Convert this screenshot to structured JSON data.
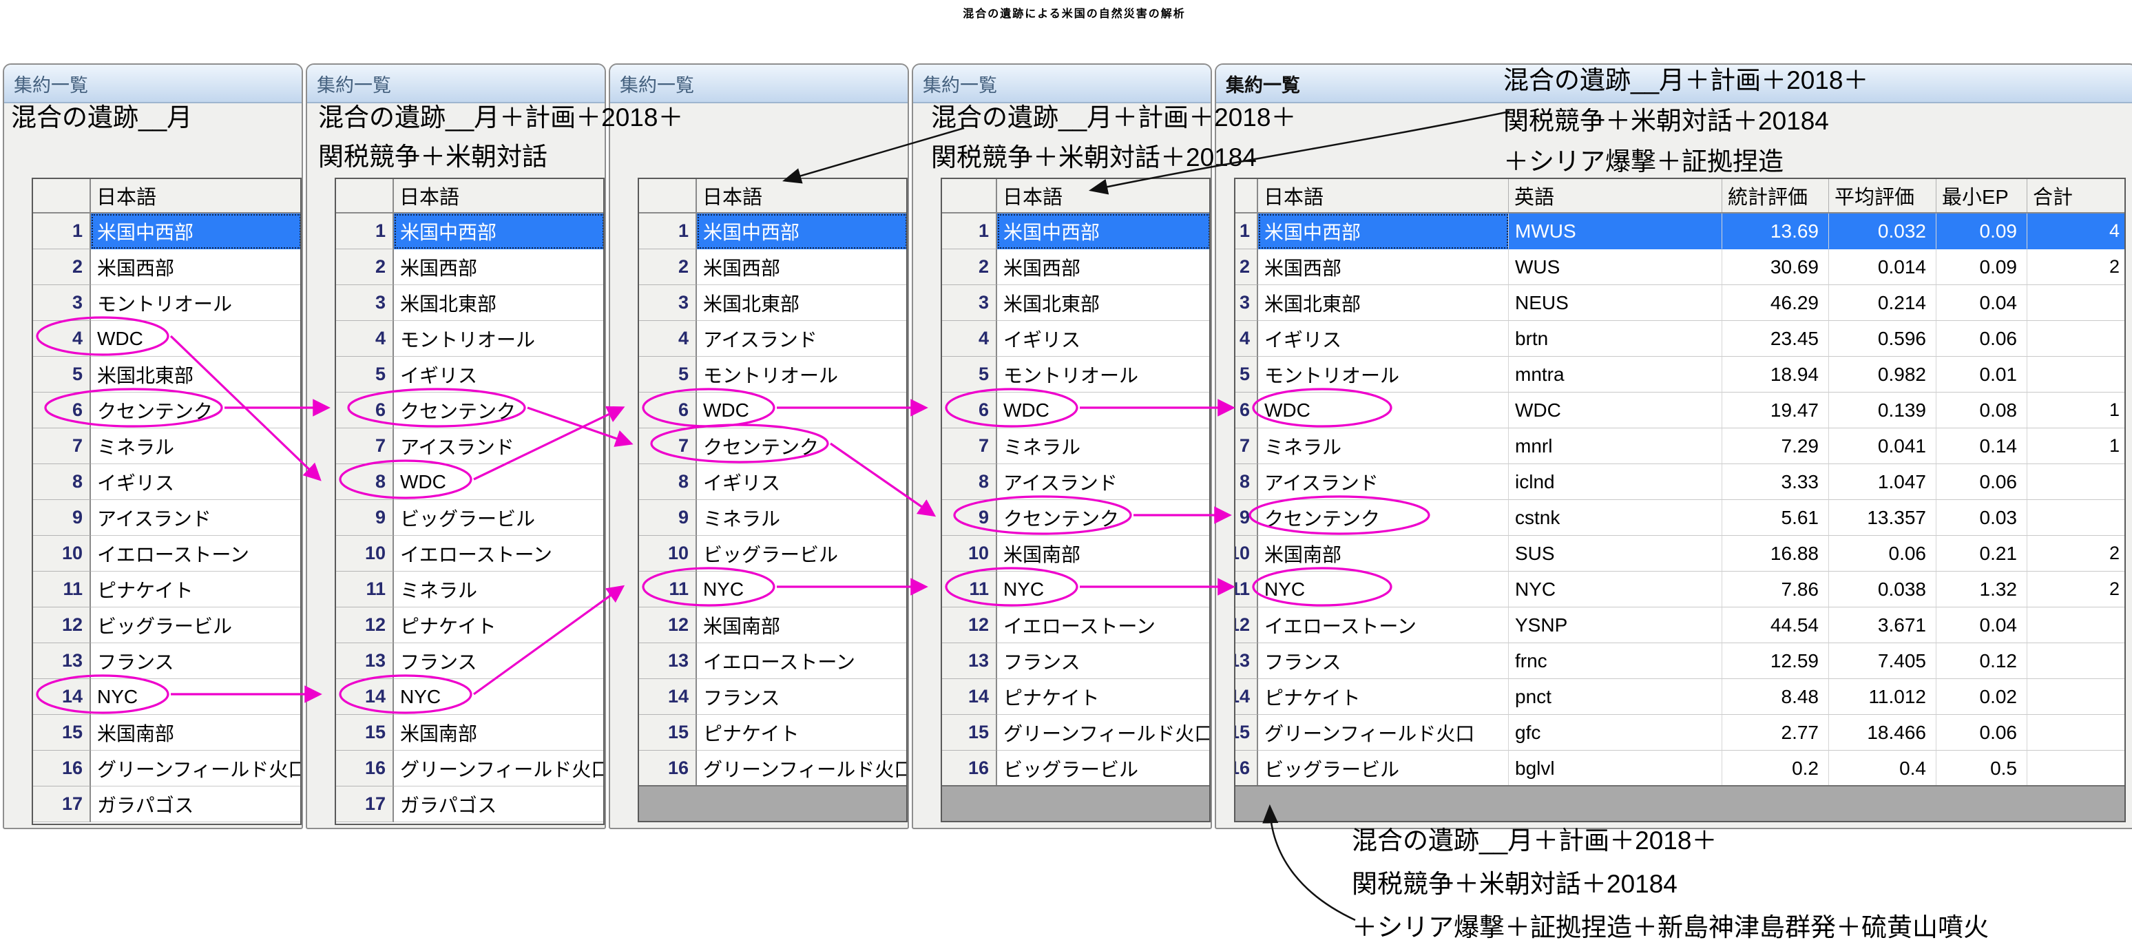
{
  "page_title": "混合の遺跡による米国の自然災害の解析",
  "colors": {
    "link_accent": "#ee00cc",
    "selection_blue": "#2c7ef8",
    "titlebar_gradient_top": "#eef5fc",
    "titlebar_gradient_bottom": "#c3d7ee",
    "filler_gray": "#a9a9a9"
  },
  "panels": [
    {
      "window_title": "集約一覧",
      "active": false,
      "caption_lines": [
        "混合の遺跡__月"
      ],
      "column_headers": [
        "",
        "日本語"
      ],
      "selected_row": 1,
      "rows": [
        [
          "米国中西部"
        ],
        [
          "米国西部"
        ],
        [
          "モントリオール"
        ],
        [
          "WDC"
        ],
        [
          "米国北東部"
        ],
        [
          "クセンテンク"
        ],
        [
          "ミネラル"
        ],
        [
          "イギリス"
        ],
        [
          "アイスランド"
        ],
        [
          "イエローストーン"
        ],
        [
          "ピナケイト"
        ],
        [
          "ビッグラービル"
        ],
        [
          "フランス"
        ],
        [
          "NYC"
        ],
        [
          "米国南部"
        ],
        [
          "グリーンフィールド火口"
        ],
        [
          "ガラパゴス"
        ]
      ]
    },
    {
      "window_title": "集約一覧",
      "active": false,
      "caption_lines": [
        "混合の遺跡__月＋計画＋2018＋",
        "関税競争＋米朝対話"
      ],
      "column_headers": [
        "",
        "日本語"
      ],
      "selected_row": 1,
      "rows": [
        [
          "米国中西部"
        ],
        [
          "米国西部"
        ],
        [
          "米国北東部"
        ],
        [
          "モントリオール"
        ],
        [
          "イギリス"
        ],
        [
          "クセンテンク"
        ],
        [
          "アイスランド"
        ],
        [
          "WDC"
        ],
        [
          "ビッグラービル"
        ],
        [
          "イエローストーン"
        ],
        [
          "ミネラル"
        ],
        [
          "ピナケイト"
        ],
        [
          "フランス"
        ],
        [
          "NYC"
        ],
        [
          "米国南部"
        ],
        [
          "グリーンフィールド火口"
        ],
        [
          "ガラパゴス"
        ]
      ]
    },
    {
      "window_title": "集約一覧",
      "active": false,
      "caption_lines": [
        "混合の遺跡__月＋計画＋2018＋",
        "関税競争＋米朝対話＋20184"
      ],
      "column_headers": [
        "",
        "日本語"
      ],
      "selected_row": 1,
      "rows": [
        [
          "米国中西部"
        ],
        [
          "米国西部"
        ],
        [
          "米国北東部"
        ],
        [
          "アイスランド"
        ],
        [
          "モントリオール"
        ],
        [
          "WDC"
        ],
        [
          "クセンテンク"
        ],
        [
          "イギリス"
        ],
        [
          "ミネラル"
        ],
        [
          "ビッグラービル"
        ],
        [
          "NYC"
        ],
        [
          "米国南部"
        ],
        [
          "イエローストーン"
        ],
        [
          "フランス"
        ],
        [
          "ピナケイト"
        ],
        [
          "グリーンフィールド火口"
        ]
      ]
    },
    {
      "window_title": "集約一覧",
      "active": false,
      "caption_lines": [
        "混合の遺跡__月＋計画＋2018＋",
        "関税競争＋米朝対話＋20184",
        "＋シリア爆撃＋証拠捏造"
      ],
      "column_headers": [
        "",
        "日本語"
      ],
      "selected_row": 1,
      "rows": [
        [
          "米国中西部"
        ],
        [
          "米国西部"
        ],
        [
          "米国北東部"
        ],
        [
          "イギリス"
        ],
        [
          "モントリオール"
        ],
        [
          "WDC"
        ],
        [
          "ミネラル"
        ],
        [
          "アイスランド"
        ],
        [
          "クセンテンク"
        ],
        [
          "米国南部"
        ],
        [
          "NYC"
        ],
        [
          "イエローストーン"
        ],
        [
          "フランス"
        ],
        [
          "ピナケイト"
        ],
        [
          "グリーンフィールド火口"
        ],
        [
          "ビッグラービル"
        ]
      ]
    },
    {
      "window_title": "集約一覧",
      "active": true,
      "caption_lines": [
        "混合の遺跡__月＋計画＋2018＋",
        "関税競争＋米朝対話＋20184",
        "＋シリア爆撃＋証拠捏造＋新島神津島群発＋硫黄山噴火"
      ],
      "column_headers": [
        "",
        "日本語",
        "英語",
        "統計評価",
        "平均評価",
        "最小EP",
        "合計"
      ],
      "selected_row": 1,
      "rows": [
        [
          "米国中西部",
          "MWUS",
          "13.69",
          "0.032",
          "0.09",
          "4"
        ],
        [
          "米国西部",
          "WUS",
          "30.69",
          "0.014",
          "0.09",
          "2"
        ],
        [
          "米国北東部",
          "NEUS",
          "46.29",
          "0.214",
          "0.04",
          ""
        ],
        [
          "イギリス",
          "brtn",
          "23.45",
          "0.596",
          "0.06",
          ""
        ],
        [
          "モントリオール",
          "mntra",
          "18.94",
          "0.982",
          "0.01",
          ""
        ],
        [
          "WDC",
          "WDC",
          "19.47",
          "0.139",
          "0.08",
          "1"
        ],
        [
          "ミネラル",
          "mnrl",
          "7.29",
          "0.041",
          "0.14",
          "1"
        ],
        [
          "アイスランド",
          "iclnd",
          "3.33",
          "1.047",
          "0.06",
          ""
        ],
        [
          "クセンテンク",
          "cstnk",
          "5.61",
          "13.357",
          "0.03",
          ""
        ],
        [
          "米国南部",
          "SUS",
          "16.88",
          "0.06",
          "0.21",
          "2"
        ],
        [
          "NYC",
          "NYC",
          "7.86",
          "0.038",
          "1.32",
          "2"
        ],
        [
          "イエローストーン",
          "YSNP",
          "44.54",
          "3.671",
          "0.04",
          ""
        ],
        [
          "フランス",
          "frnc",
          "12.59",
          "7.405",
          "0.12",
          ""
        ],
        [
          "ピナケイト",
          "pnct",
          "8.48",
          "11.012",
          "0.02",
          ""
        ],
        [
          "グリーンフィールド火口",
          "gfc",
          "2.77",
          "18.466",
          "0.06",
          ""
        ],
        [
          "ビッグラービル",
          "bglvl",
          "0.2",
          "0.4",
          "0.5",
          ""
        ]
      ]
    }
  ],
  "circled_cells": [
    {
      "panel": 0,
      "row": 4,
      "label": "WDC"
    },
    {
      "panel": 0,
      "row": 6,
      "label": "クセンテンク"
    },
    {
      "panel": 0,
      "row": 14,
      "label": "NYC"
    },
    {
      "panel": 1,
      "row": 6,
      "label": "クセンテンク"
    },
    {
      "panel": 1,
      "row": 8,
      "label": "WDC"
    },
    {
      "panel": 1,
      "row": 14,
      "label": "NYC"
    },
    {
      "panel": 2,
      "row": 6,
      "label": "WDC"
    },
    {
      "panel": 2,
      "row": 7,
      "label": "クセンテンク"
    },
    {
      "panel": 2,
      "row": 11,
      "label": "NYC"
    },
    {
      "panel": 3,
      "row": 6,
      "label": "WDC"
    },
    {
      "panel": 3,
      "row": 9,
      "label": "クセンテンク"
    },
    {
      "panel": 3,
      "row": 11,
      "label": "NYC"
    },
    {
      "panel": 4,
      "row": 6,
      "label": "WDC"
    },
    {
      "panel": 4,
      "row": 9,
      "label": "クセンテンク"
    },
    {
      "panel": 4,
      "row": 11,
      "label": "NYC"
    }
  ],
  "links": [
    {
      "from": {
        "panel": 0,
        "row": 6
      },
      "to": {
        "panel": 1,
        "row": 6
      }
    },
    {
      "from": {
        "panel": 0,
        "row": 4
      },
      "to": {
        "panel": 1,
        "row": 8
      }
    },
    {
      "from": {
        "panel": 0,
        "row": 14
      },
      "to": {
        "panel": 1,
        "row": 14
      }
    },
    {
      "from": {
        "panel": 1,
        "row": 6
      },
      "to": {
        "panel": 2,
        "row": 7
      }
    },
    {
      "from": {
        "panel": 1,
        "row": 8
      },
      "to": {
        "panel": 2,
        "row": 6
      }
    },
    {
      "from": {
        "panel": 1,
        "row": 14
      },
      "to": {
        "panel": 2,
        "row": 11
      }
    },
    {
      "from": {
        "panel": 2,
        "row": 6
      },
      "to": {
        "panel": 3,
        "row": 6
      }
    },
    {
      "from": {
        "panel": 2,
        "row": 7
      },
      "to": {
        "panel": 3,
        "row": 9
      }
    },
    {
      "from": {
        "panel": 2,
        "row": 11
      },
      "to": {
        "panel": 3,
        "row": 11
      }
    },
    {
      "from": {
        "panel": 3,
        "row": 6
      },
      "to": {
        "panel": 4,
        "row": 6
      }
    },
    {
      "from": {
        "panel": 3,
        "row": 9
      },
      "to": {
        "panel": 4,
        "row": 9
      }
    },
    {
      "from": {
        "panel": 3,
        "row": 11
      },
      "to": {
        "panel": 4,
        "row": 11
      }
    }
  ],
  "caption_pointers": [
    {
      "caption_of": "panel-3",
      "points_to": "panel-3-japanese-header"
    },
    {
      "caption_of": "panel-4",
      "points_to": "panel-4-japanese-header"
    },
    {
      "caption_of": "panel-5",
      "points_to": "panel-5-bottom-area"
    }
  ]
}
